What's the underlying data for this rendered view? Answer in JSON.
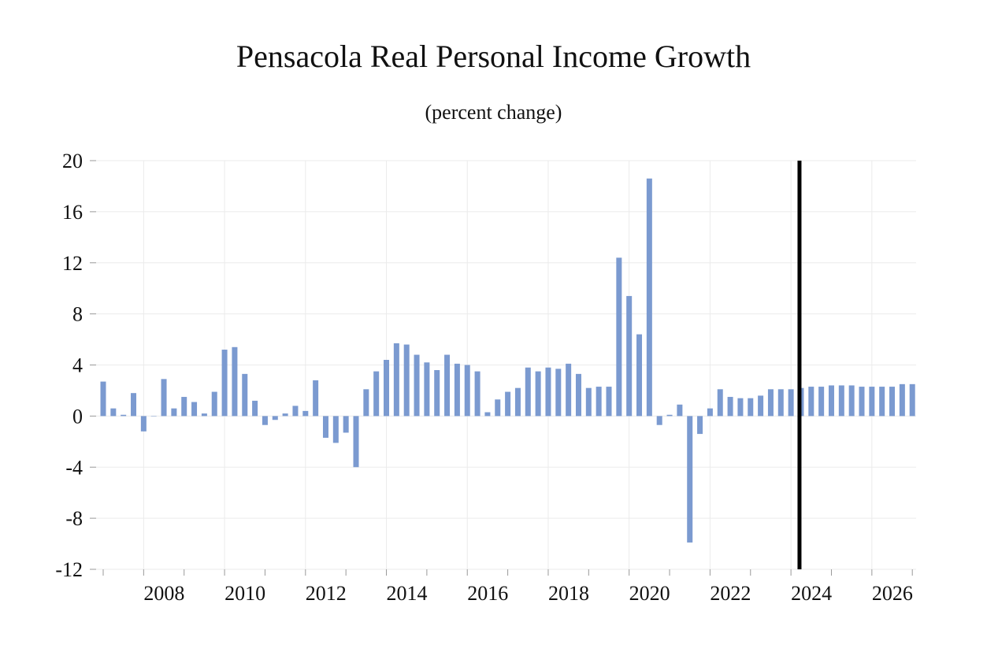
{
  "chart_data": {
    "type": "bar",
    "title": "Pensacola Real Personal Income Growth",
    "subtitle": "(percent change)",
    "xlabel": "",
    "ylabel": "",
    "ylim": [
      -12,
      20
    ],
    "yticks": [
      20,
      16,
      12,
      8,
      4,
      0,
      -4,
      -8,
      -12
    ],
    "ytick_labels": [
      "20",
      "16",
      "12",
      "8",
      "4",
      "0",
      "-4",
      "-8",
      "-12"
    ],
    "xlim": [
      2007.0,
      2027.25
    ],
    "xticks": [
      2008,
      2010,
      2012,
      2014,
      2016,
      2018,
      2020,
      2022,
      2024,
      2026
    ],
    "xtick_labels": [
      "2008",
      "2010",
      "2012",
      "2014",
      "2016",
      "2018",
      "2020",
      "2022",
      "2024",
      "2026"
    ],
    "grid": true,
    "forecast_marker_x": 2024.25,
    "bar_color": "#7b9ad0",
    "marker_color": "#000000",
    "series": [
      {
        "name": "Real Personal Income Growth",
        "x": [
          2007.0,
          2007.25,
          2007.5,
          2007.75,
          2008.0,
          2008.25,
          2008.5,
          2008.75,
          2009.0,
          2009.25,
          2009.5,
          2009.75,
          2010.0,
          2010.25,
          2010.5,
          2010.75,
          2011.0,
          2011.25,
          2011.5,
          2011.75,
          2012.0,
          2012.25,
          2012.5,
          2012.75,
          2013.0,
          2013.25,
          2013.5,
          2013.75,
          2014.0,
          2014.25,
          2014.5,
          2014.75,
          2015.0,
          2015.25,
          2015.5,
          2015.75,
          2016.0,
          2016.25,
          2016.5,
          2016.75,
          2017.0,
          2017.25,
          2017.5,
          2017.75,
          2018.0,
          2018.25,
          2018.5,
          2018.75,
          2019.0,
          2019.25,
          2019.5,
          2019.75,
          2020.0,
          2020.25,
          2020.5,
          2020.75,
          2021.0,
          2021.25,
          2021.5,
          2021.75,
          2022.0,
          2022.25,
          2022.5,
          2022.75,
          2023.0,
          2023.25,
          2023.5,
          2023.75,
          2024.0,
          2024.25,
          2024.5,
          2024.75,
          2025.0,
          2025.25,
          2025.5,
          2025.75,
          2026.0,
          2026.25,
          2026.5,
          2026.75,
          2027.0
        ],
        "values": [
          2.7,
          0.6,
          0.1,
          1.8,
          -1.2,
          0.0,
          2.9,
          0.6,
          1.5,
          1.1,
          0.2,
          1.9,
          5.2,
          5.4,
          3.3,
          1.2,
          -0.7,
          -0.3,
          0.2,
          0.8,
          0.4,
          2.8,
          -1.7,
          -2.1,
          -1.3,
          -4.0,
          2.1,
          3.5,
          4.4,
          5.7,
          5.6,
          4.8,
          4.2,
          3.6,
          4.8,
          4.1,
          4.0,
          3.5,
          0.3,
          1.3,
          1.9,
          2.2,
          3.8,
          3.5,
          3.8,
          3.7,
          4.1,
          3.3,
          2.2,
          2.3,
          2.3,
          12.4,
          9.4,
          6.4,
          18.6,
          -0.7,
          0.1,
          0.9,
          -9.9,
          -1.4,
          0.6,
          2.1,
          1.5,
          1.4,
          1.4,
          1.6,
          2.1,
          2.1,
          2.1,
          2.2,
          2.3,
          2.3,
          2.4,
          2.4,
          2.4,
          2.3,
          2.3,
          2.3,
          2.3,
          2.5,
          2.5
        ]
      }
    ]
  }
}
